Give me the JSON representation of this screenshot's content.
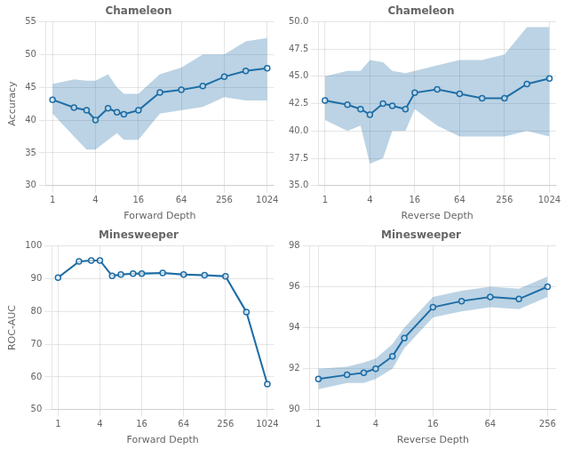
{
  "chart_data": [
    {
      "type": "line",
      "title": "Chameleon",
      "x_label": "Forward Depth",
      "y_label": "Accuracy",
      "x": [
        1,
        2,
        3,
        4,
        6,
        8,
        10,
        16,
        32,
        64,
        128,
        256,
        512,
        1024
      ],
      "values": [
        43.1,
        41.9,
        41.5,
        40.0,
        41.8,
        41.2,
        40.9,
        41.5,
        44.2,
        44.6,
        45.2,
        46.6,
        47.5,
        47.9
      ],
      "upper": [
        45.5,
        46.2,
        46.0,
        46.0,
        47.0,
        45.0,
        44.0,
        44.0,
        47.0,
        48.0,
        50.0,
        50.0,
        52.0,
        52.5
      ],
      "lower": [
        41.0,
        37.5,
        35.5,
        35.5,
        37.0,
        38.0,
        37.0,
        37.0,
        41.0,
        41.5,
        42.0,
        43.5,
        43.0,
        43.0
      ],
      "color": "#1f6ea7",
      "marker": "circle",
      "log": "x",
      "grid": true,
      "xlim": [
        0.8122523963562356,
        1260.6918792651943
      ],
      "xticks": [
        1,
        4,
        16,
        64,
        256,
        1024
      ],
      "ylim": [
        30,
        55
      ],
      "yticks": [
        30,
        35,
        40,
        45,
        50,
        55
      ]
    },
    {
      "type": "line",
      "title": "Chameleon",
      "x_label": "Reverse Depth",
      "x": [
        1,
        2,
        3,
        4,
        6,
        8,
        12,
        16,
        32,
        64,
        128,
        256,
        512,
        1024
      ],
      "values": [
        42.8,
        42.4,
        42.0,
        41.5,
        42.5,
        42.3,
        42.0,
        43.5,
        43.8,
        43.4,
        43.0,
        43.0,
        44.3,
        44.8
      ],
      "upper": [
        45.0,
        45.5,
        45.5,
        46.5,
        46.3,
        45.5,
        45.3,
        45.5,
        46.0,
        46.5,
        46.5,
        47.0,
        49.5,
        49.5
      ],
      "lower": [
        41.0,
        40.0,
        40.5,
        37.0,
        37.5,
        40.0,
        40.0,
        42.0,
        40.5,
        39.5,
        39.5,
        39.5,
        40.0,
        39.5
      ],
      "color": "#1f6ea7",
      "marker": "circle",
      "log": "x",
      "grid": true,
      "xlim": [
        0.8122523963562356,
        1260.6918792651943
      ],
      "xticks": [
        1,
        4,
        16,
        64,
        256,
        1024
      ],
      "ylim": [
        35.0,
        50.0
      ],
      "yticks": [
        {
          "value": 35,
          "label": "35.0"
        },
        37.5,
        {
          "value": 40,
          "label": "40.0"
        },
        42.5,
        {
          "value": 45,
          "label": "45.0"
        },
        47.5,
        {
          "value": 50,
          "label": "50.0"
        }
      ]
    },
    {
      "type": "line",
      "title": "Minesweeper",
      "x_label": "Forward Depth",
      "y_label": "ROC-AUC",
      "x": [
        1,
        2,
        3,
        4,
        6,
        8,
        12,
        16,
        32,
        64,
        128,
        256,
        512,
        1024
      ],
      "values": [
        90.3,
        95.2,
        95.5,
        95.5,
        90.8,
        91.2,
        91.5,
        91.5,
        91.7,
        91.2,
        91.0,
        90.7,
        79.8,
        57.8
      ],
      "upper": [
        90.6,
        95.5,
        95.8,
        95.7,
        91.1,
        91.5,
        91.8,
        92.0,
        92.0,
        91.6,
        91.3,
        91.1,
        80.5,
        58.5
      ],
      "lower": [
        90.0,
        94.9,
        95.2,
        95.3,
        90.5,
        90.9,
        91.2,
        91.0,
        91.4,
        90.8,
        90.7,
        90.3,
        79.1,
        57.1
      ],
      "color": "#1f6ea7",
      "marker": "circle",
      "log": "x",
      "grid": true,
      "xlim": [
        0.8122523963562356,
        1260.6918792651943
      ],
      "xticks": [
        1,
        4,
        16,
        64,
        256,
        1024
      ],
      "ylim": [
        50,
        100
      ],
      "yticks": [
        50,
        60,
        70,
        80,
        90,
        100
      ]
    },
    {
      "type": "line",
      "title": "Minesweeper",
      "x_label": "Reverse Depth",
      "x": [
        1,
        2,
        3,
        4,
        6,
        8,
        16,
        32,
        64,
        128,
        256
      ],
      "values": [
        91.5,
        91.7,
        91.8,
        92.0,
        92.6,
        93.5,
        95.0,
        95.3,
        95.5,
        95.4,
        96.0
      ],
      "upper": [
        92.0,
        92.1,
        92.3,
        92.5,
        93.2,
        94.0,
        95.5,
        95.8,
        96.0,
        95.9,
        96.5
      ],
      "lower": [
        91.0,
        91.3,
        91.3,
        91.5,
        92.0,
        93.0,
        94.5,
        94.8,
        95.0,
        94.9,
        95.5
      ],
      "color": "#1f6ea7",
      "marker": "circle",
      "log": "x",
      "grid": true,
      "xlim": [
        0.8122523963562356,
        315.1729698162986
      ],
      "xticks": [
        1,
        4,
        16,
        64,
        256
      ],
      "ylim": [
        90,
        98
      ],
      "yticks": [
        90,
        92,
        94,
        96,
        98
      ]
    }
  ]
}
